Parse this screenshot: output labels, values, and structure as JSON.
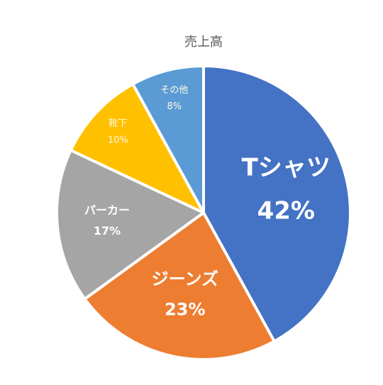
{
  "chart_data": {
    "type": "pie",
    "title": "売上高",
    "categories": [
      "Tシャツ",
      "ジーンズ",
      "パーカー",
      "靴下",
      "その他"
    ],
    "values": [
      42,
      23,
      17,
      10,
      8
    ],
    "value_labels": [
      "42%",
      "23%",
      "17%",
      "10%",
      "8%"
    ],
    "colors": [
      "#4472c4",
      "#ed7d31",
      "#a5a5a5",
      "#ffc000",
      "#5b9bd5"
    ]
  }
}
